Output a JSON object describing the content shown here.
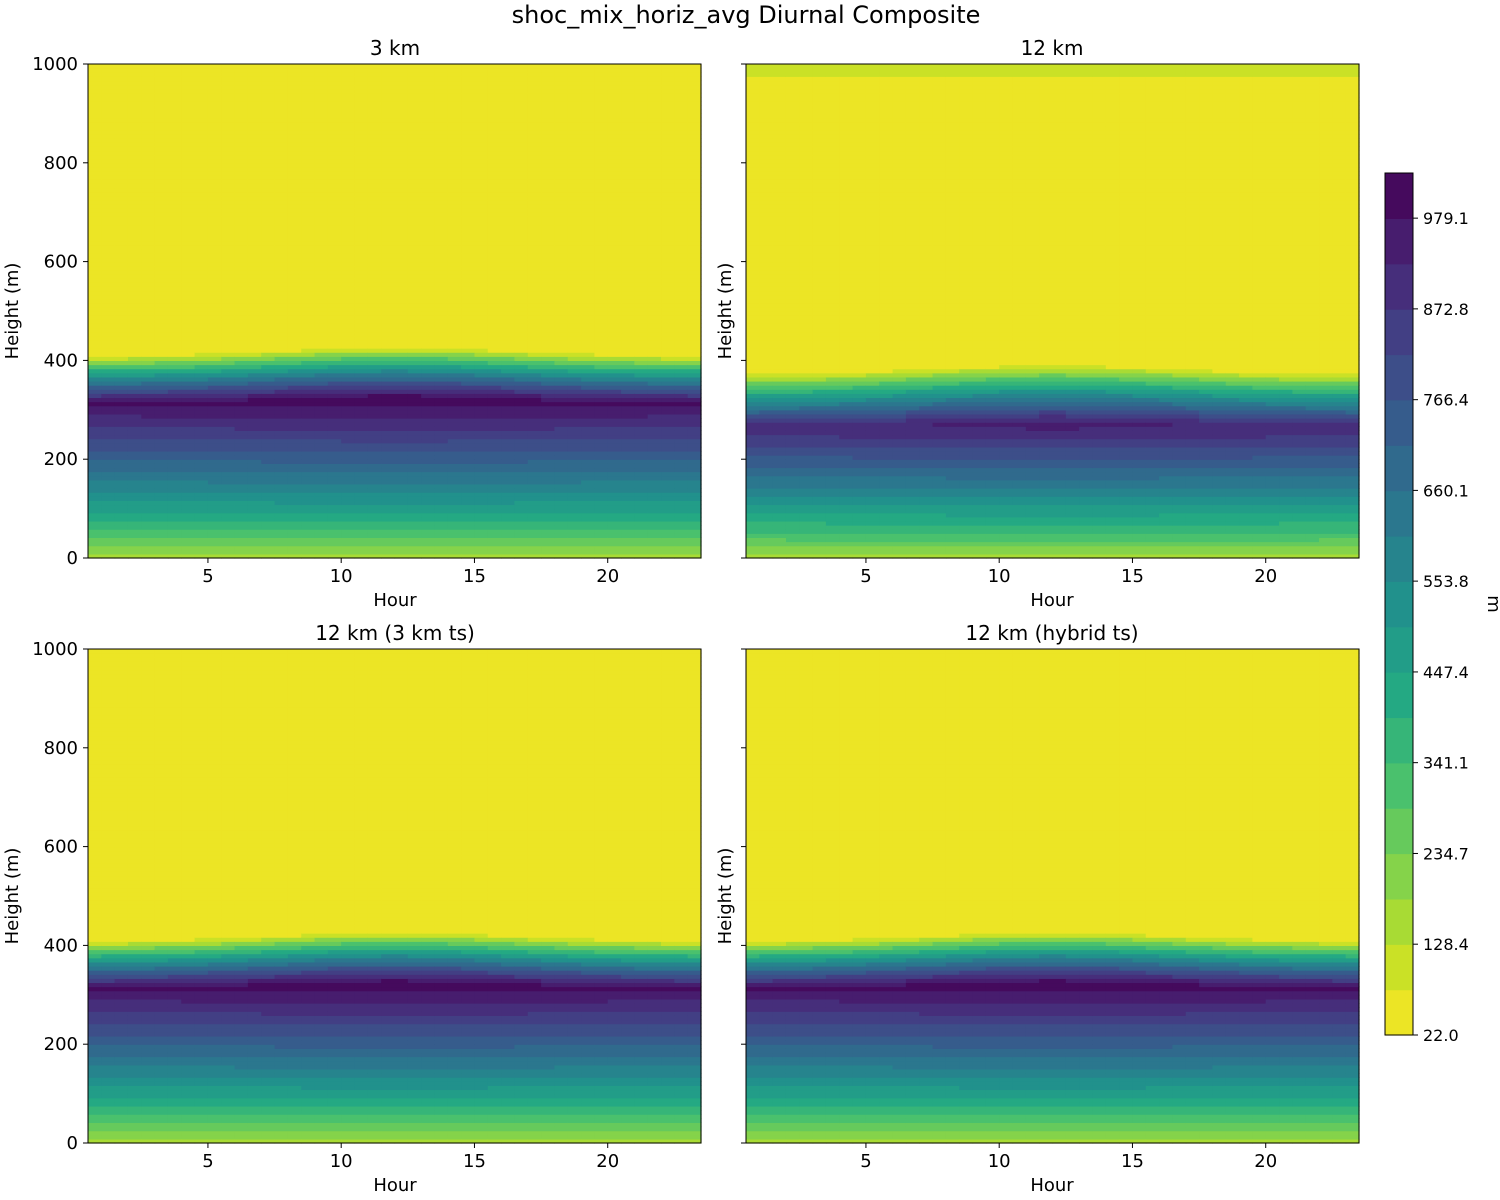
{
  "chart_data": {
    "type": "contourf",
    "suptitle": "shoc_mix_horiz_avg Diurnal Composite",
    "colormap": "viridis_r",
    "colorbar": {
      "label": "m",
      "vmin": 22.0,
      "vmax": 1032.0,
      "ticks": [
        22.0,
        128.4,
        234.7,
        341.1,
        447.4,
        553.8,
        660.1,
        766.4,
        872.8,
        979.1
      ],
      "tick_labels": [
        "22.0",
        "128.4",
        "234.7",
        "341.1",
        "447.4",
        "553.8",
        "660.1",
        "766.4",
        "872.8",
        "979.1"
      ],
      "n_levels": 19
    },
    "x": {
      "label": "Hour",
      "range": [
        0.5,
        23.5
      ],
      "ticks": [
        5,
        10,
        15,
        20
      ],
      "tick_labels": [
        "5",
        "10",
        "15",
        "20"
      ]
    },
    "y": {
      "label": "Height (m)",
      "range": [
        0,
        1000
      ],
      "ticks": [
        0,
        200,
        400,
        600,
        800,
        1000
      ],
      "tick_labels": [
        "0",
        "200",
        "400",
        "600",
        "800",
        "1000"
      ]
    },
    "panels": [
      {
        "title": "3 km",
        "peak_value": 1020,
        "peak_height": 320,
        "top_height": 975,
        "top_value": 22,
        "profile": {
          "surface": 145,
          "bl_top": 410,
          "transition_width": 55,
          "floor": 45
        }
      },
      {
        "title": "12 km",
        "peak_value": 950,
        "peak_height": 270,
        "top_height": 975,
        "top_value": 110,
        "profile": {
          "surface": 140,
          "bl_top": 375,
          "transition_width": 55,
          "floor": 40
        }
      },
      {
        "title": "12 km (3 km ts)",
        "peak_value": 1018,
        "peak_height": 320,
        "top_height": 975,
        "top_value": 22,
        "profile": {
          "surface": 145,
          "bl_top": 410,
          "transition_width": 55,
          "floor": 45
        }
      },
      {
        "title": "12 km (hybrid ts)",
        "peak_value": 1018,
        "peak_height": 320,
        "top_height": 975,
        "top_value": 22,
        "profile": {
          "surface": 145,
          "bl_top": 410,
          "transition_width": 55,
          "floor": 45
        }
      }
    ]
  }
}
